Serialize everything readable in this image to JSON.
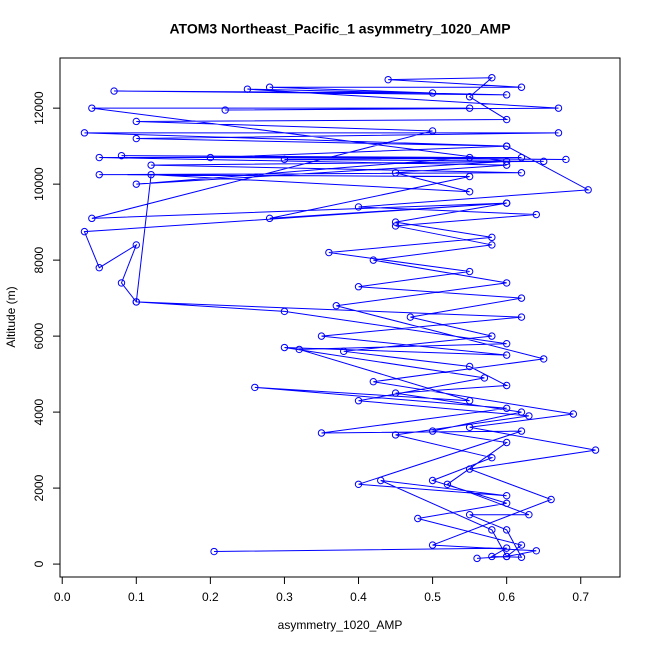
{
  "chart_data": {
    "type": "line",
    "title": "ATOM3 Northeast_Pacific_1 asymmetry_1020_AMP",
    "x_label": "asymmetry_1020_AMP",
    "y_label": "Altitude (m)",
    "markers": true,
    "xlim": [
      -0.003,
      0.753
    ],
    "ylim": [
      -340,
      13320
    ],
    "xticks": [
      {
        "value": 0,
        "label": "0.0"
      },
      0.1,
      0.2,
      0.3,
      0.4,
      0.5,
      0.6,
      0.7
    ],
    "yticks": [
      0,
      2000,
      4000,
      6000,
      8000,
      10000,
      12000
    ],
    "x": [
      0.205,
      0.6,
      0.58,
      0.62,
      0.6,
      0.55,
      0.63,
      0.52,
      0.6,
      0.5,
      0.62,
      0.45,
      0.6,
      0.55,
      0.38,
      0.58,
      0.47,
      0.62,
      0.4,
      0.55,
      0.36,
      0.58,
      0.45,
      0.6,
      0.28,
      0.55,
      0.05,
      0.62,
      0.12,
      0.65,
      0.3,
      0.62,
      0.05,
      0.6,
      0.45,
      0.55,
      0.12,
      0.1,
      0.62,
      0.35,
      0.6,
      0.3,
      0.57,
      0.4,
      0.63,
      0.45,
      0.58,
      0.5,
      0.6,
      0.48,
      0.62,
      0.6,
      0.64,
      0.5,
      0.66,
      0.55,
      0.72,
      0.55,
      0.69,
      0.42,
      0.65,
      0.37,
      0.6,
      0.42,
      0.58,
      0.45,
      0.64,
      0.4,
      0.71,
      0.6,
      0.03,
      0.67,
      0.1,
      0.6,
      0.2,
      0.68,
      0.08,
      0.55,
      0.1,
      0.6,
      0.04,
      0.55,
      0.22,
      0.67,
      0.25,
      0.6,
      0.07,
      0.5,
      0.28,
      0.62,
      0.44,
      0.58,
      0.55,
      0.6,
      0.1,
      0.5,
      0.04,
      0.6,
      0.03,
      0.05,
      0.1,
      0.08,
      0.1,
      0.3,
      0.6,
      0.32,
      0.55,
      0.26,
      0.6,
      0.35,
      0.62,
      0.4,
      0.6,
      0.43,
      0.58,
      0.6,
      0.56
    ],
    "series": [
      {
        "name": "asymmetry_1020_AMP",
        "color": "#0000ff",
        "values": [
          330,
          420,
          200,
          180,
          900,
          1300,
          1300,
          2100,
          3200,
          3500,
          4000,
          4500,
          4700,
          5200,
          5600,
          6000,
          6500,
          7000,
          7300,
          7700,
          8200,
          8600,
          9000,
          9500,
          9100,
          10200,
          10250,
          10300,
          10500,
          10600,
          10650,
          10700,
          10700,
          10500,
          10300,
          9800,
          10250,
          6900,
          6500,
          6000,
          5500,
          5700,
          4900,
          4300,
          3900,
          3400,
          2800,
          2200,
          1600,
          1200,
          500,
          200,
          350,
          500,
          1700,
          2500,
          3000,
          3600,
          3950,
          4800,
          5400,
          6800,
          7400,
          8000,
          8400,
          8900,
          9200,
          9400,
          9850,
          11000,
          11350,
          11350,
          11200,
          11000,
          10700,
          10650,
          10750,
          10700,
          10000,
          10600,
          12000,
          12000,
          11950,
          12000,
          12500,
          12350,
          12450,
          12400,
          12550,
          12550,
          12750,
          12800,
          12300,
          11700,
          11650,
          11400,
          9100,
          9500,
          8750,
          7800,
          8400,
          7400,
          6900,
          6650,
          5800,
          5650,
          4300,
          4650,
          4100,
          3450,
          3500,
          2100,
          1800,
          2200,
          900,
          200,
          150
        ]
      }
    ]
  }
}
